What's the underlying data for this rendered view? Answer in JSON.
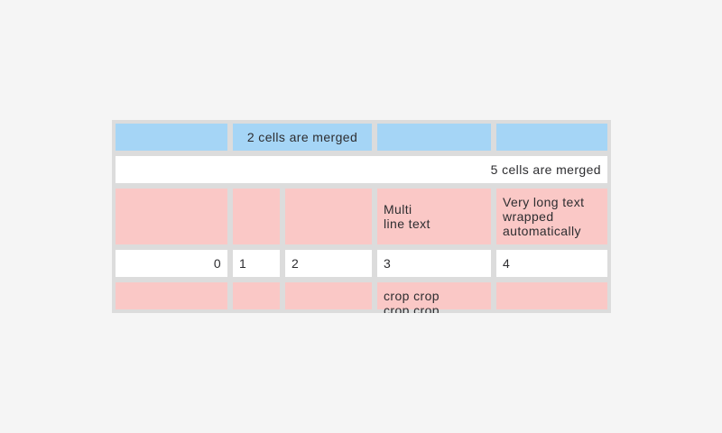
{
  "colors": {
    "page_bg": "#f5f5f5",
    "table_bg": "#dcdcdc",
    "cell_blue": "#a5d5f6",
    "cell_pink": "#fac8c6",
    "cell_white": "#ffffff",
    "text": "#2d2d30"
  },
  "table": {
    "rows": [
      {
        "cells": [
          {
            "text": "",
            "style": "blue"
          },
          {
            "text": "2 cells are merged",
            "style": "blue",
            "colspan": 2,
            "align": "center"
          },
          {
            "text": "",
            "style": "blue"
          },
          {
            "text": "",
            "style": "blue"
          }
        ]
      },
      {
        "cells": [
          {
            "text": "5 cells are merged",
            "style": "white",
            "colspan": 5,
            "align": "right"
          }
        ]
      },
      {
        "cells": [
          {
            "text": "",
            "style": "pink"
          },
          {
            "text": "",
            "style": "pink"
          },
          {
            "text": "",
            "style": "pink"
          },
          {
            "text": "Multi\nline text",
            "style": "pink",
            "align": "left"
          },
          {
            "text": "Very long text wrapped automatically",
            "style": "pink",
            "align": "left"
          }
        ]
      },
      {
        "cells": [
          {
            "text": "0",
            "style": "white",
            "align": "right"
          },
          {
            "text": "1",
            "style": "white",
            "align": "left"
          },
          {
            "text": "2",
            "style": "white",
            "align": "left"
          },
          {
            "text": "3",
            "style": "white",
            "align": "left"
          },
          {
            "text": "4",
            "style": "white",
            "align": "left"
          }
        ]
      },
      {
        "cells": [
          {
            "text": "",
            "style": "pink"
          },
          {
            "text": "",
            "style": "pink"
          },
          {
            "text": "",
            "style": "pink"
          },
          {
            "text": "crop crop crop crop",
            "style": "pink",
            "align": "left",
            "cropped": true
          },
          {
            "text": "",
            "style": "pink"
          }
        ]
      }
    ]
  }
}
